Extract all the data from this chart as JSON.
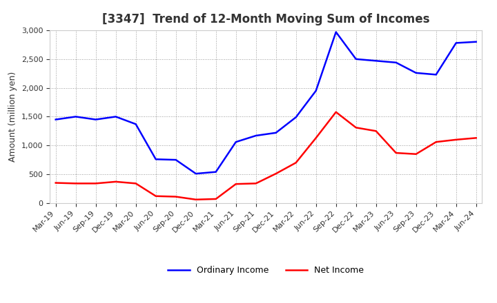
{
  "title": "[3347]  Trend of 12-Month Moving Sum of Incomes",
  "ylabel": "Amount (million yen)",
  "ylim": [
    0,
    3000
  ],
  "yticks": [
    0,
    500,
    1000,
    1500,
    2000,
    2500,
    3000
  ],
  "x_labels": [
    "Mar-19",
    "Jun-19",
    "Sep-19",
    "Dec-19",
    "Mar-20",
    "Jun-20",
    "Sep-20",
    "Dec-20",
    "Mar-21",
    "Jun-21",
    "Sep-21",
    "Dec-21",
    "Mar-22",
    "Jun-22",
    "Sep-22",
    "Dec-22",
    "Mar-23",
    "Jun-23",
    "Sep-23",
    "Dec-23",
    "Mar-24",
    "Jun-24"
  ],
  "ordinary_income": [
    1450,
    1500,
    1450,
    1500,
    1370,
    760,
    750,
    510,
    540,
    1060,
    1170,
    1220,
    1490,
    1950,
    2970,
    2500,
    2470,
    2440,
    2260,
    2230,
    2780,
    2800
  ],
  "net_income": [
    350,
    340,
    340,
    370,
    340,
    120,
    110,
    60,
    70,
    330,
    340,
    510,
    700,
    1130,
    1580,
    1310,
    1250,
    870,
    850,
    1060,
    1100,
    1130
  ],
  "ordinary_color": "#0000FF",
  "net_color": "#FF0000",
  "bg_color": "#FFFFFF",
  "plot_bg_color": "#FFFFFF",
  "grid_color": "#999999",
  "title_fontsize": 12,
  "label_fontsize": 9,
  "tick_fontsize": 8,
  "legend_fontsize": 9,
  "line_width": 1.8
}
